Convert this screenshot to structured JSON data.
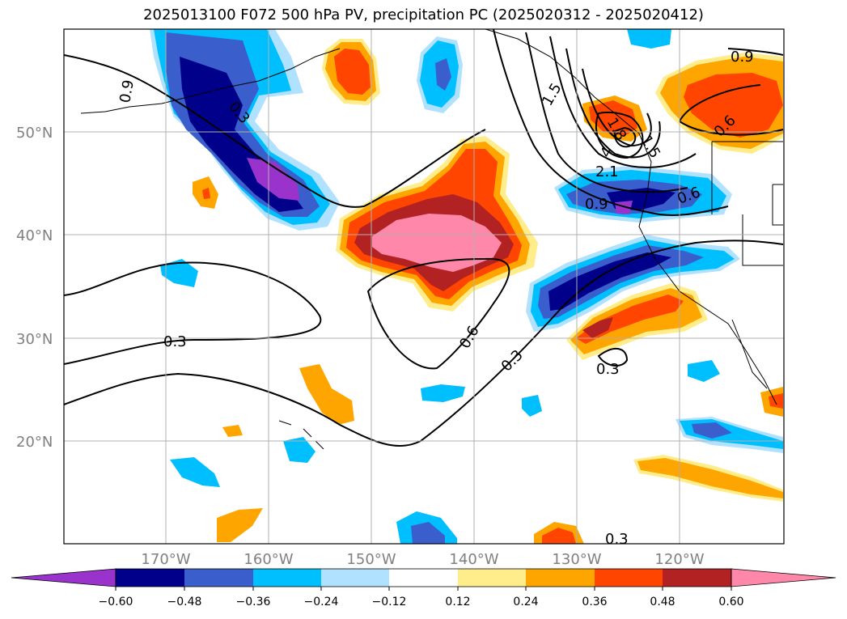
{
  "title": "2025013100 F072 500 hPa PV, precipitation PC (2025020312 - 2025020412)",
  "map": {
    "lat_labels": [
      "50°N",
      "40°N",
      "30°N",
      "20°N"
    ],
    "lon_labels": [
      "170°W",
      "160°W",
      "150°W",
      "140°W",
      "130°W",
      "120°W"
    ],
    "contour_labels": [
      "0.9",
      "0.3",
      "0.6",
      "0.3",
      "0.3",
      "0.3",
      "0.9",
      "0.6",
      "0.9",
      "0.6",
      "2.1",
      "4",
      "0.3",
      "1.5",
      "1.8",
      "1.5"
    ],
    "grid_color": "#b0b0b0"
  },
  "colorbar": {
    "ticks": [
      "−0.60",
      "−0.48",
      "−0.36",
      "−0.24",
      "−0.12",
      "0.12",
      "0.24",
      "0.36",
      "0.48",
      "0.60"
    ],
    "colors": [
      "#9933cc",
      "#00008b",
      "#3a5fcd",
      "#00bfff",
      "#b0e2ff",
      "#ffffff",
      "#ffec8b",
      "#ffa500",
      "#ff4500",
      "#b22222",
      "#ff88aa"
    ]
  }
}
